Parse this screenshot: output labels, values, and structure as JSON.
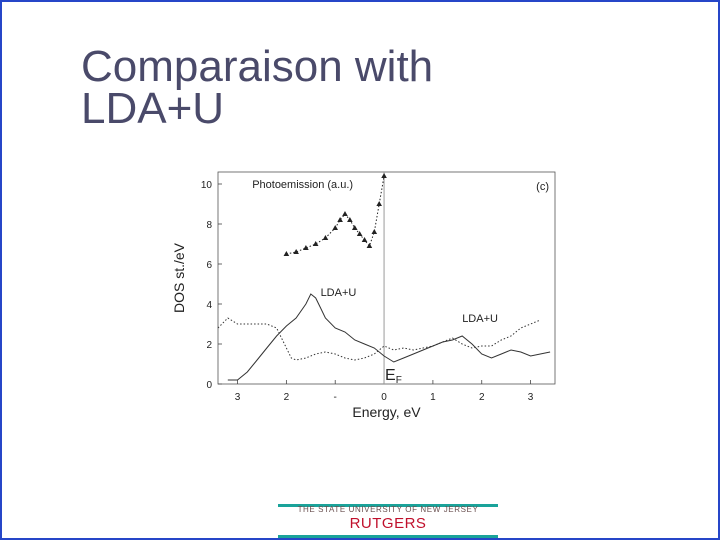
{
  "slide": {
    "title_lines": [
      "Comparaison with",
      "LDA+U"
    ],
    "footer": {
      "university": "THE STATE UNIVERSITY OF NEW JERSEY",
      "brand": "RUTGERS",
      "accent_color": "#1aa39a",
      "brand_color": "#c0102c"
    }
  },
  "chart_data": {
    "type": "line",
    "panel_label": "(c)",
    "xlabel": "Energy, eV",
    "ylabel": "DOS st./eV",
    "xlim": [
      -3.4,
      3.5
    ],
    "ylim": [
      0,
      10.6
    ],
    "xticks": [
      -3,
      -2,
      -1,
      0,
      1,
      2,
      3
    ],
    "xtick_labels": [
      "3",
      "2",
      "-",
      "0",
      "1",
      "2",
      "3"
    ],
    "yticks": [
      0,
      2,
      4,
      6,
      8,
      10
    ],
    "ytick_labels": [
      "0",
      "2",
      "4",
      "6",
      "8",
      "10"
    ],
    "fermi_level": {
      "x": 0,
      "label": "E",
      "subscript": "F"
    },
    "annotations": [
      {
        "text": "Photoemission (a.u.)",
        "x": -2.7,
        "y": 9.8
      },
      {
        "text": "LDA+U",
        "x": -1.3,
        "y": 4.4
      },
      {
        "text": "LDA+U",
        "x": 1.6,
        "y": 3.1
      }
    ],
    "series": [
      {
        "style": "dotted-markers",
        "color": "#222222",
        "x": [
          -2.0,
          -1.8,
          -1.6,
          -1.4,
          -1.2,
          -1.0,
          -0.9,
          -0.8,
          -0.7,
          -0.6,
          -0.5,
          -0.4,
          -0.3,
          -0.2,
          -0.1,
          0.0
        ],
        "y": [
          6.5,
          6.6,
          6.8,
          7.0,
          7.3,
          7.8,
          8.2,
          8.5,
          8.2,
          7.8,
          7.5,
          7.2,
          6.9,
          7.6,
          9.0,
          10.4
        ]
      },
      {
        "style": "solid",
        "color": "#333333",
        "x": [
          -3.2,
          -3.0,
          -2.8,
          -2.6,
          -2.4,
          -2.2,
          -2.0,
          -1.8,
          -1.6,
          -1.5,
          -1.4,
          -1.3,
          -1.2,
          -1.0,
          -0.8,
          -0.6,
          -0.4,
          -0.2,
          0.0,
          0.2,
          0.4,
          0.6,
          0.8,
          1.0,
          1.2,
          1.4,
          1.6,
          1.8,
          2.0,
          2.2,
          2.4,
          2.6,
          2.8,
          3.0,
          3.2,
          3.4
        ],
        "y": [
          0.2,
          0.2,
          0.6,
          1.2,
          1.8,
          2.4,
          2.9,
          3.3,
          4.0,
          4.5,
          4.3,
          3.8,
          3.3,
          2.8,
          2.6,
          2.2,
          2.0,
          1.8,
          1.4,
          1.1,
          1.3,
          1.5,
          1.7,
          1.9,
          2.1,
          2.2,
          2.4,
          2.0,
          1.5,
          1.3,
          1.5,
          1.7,
          1.6,
          1.4,
          1.5,
          1.6
        ]
      },
      {
        "style": "dotted",
        "color": "#333333",
        "x": [
          -3.4,
          -3.2,
          -3.0,
          -2.8,
          -2.6,
          -2.4,
          -2.2,
          -2.0,
          -1.9,
          -1.8,
          -1.6,
          -1.4,
          -1.2,
          -1.0,
          -0.8,
          -0.6,
          -0.4,
          -0.2,
          0.0,
          0.2,
          0.4,
          0.6,
          0.8,
          1.0,
          1.2,
          1.4,
          1.6,
          1.8,
          2.0,
          2.2,
          2.4,
          2.6,
          2.8,
          3.0,
          3.2
        ],
        "y": [
          2.8,
          3.3,
          3.0,
          3.0,
          3.0,
          3.0,
          2.8,
          1.8,
          1.3,
          1.2,
          1.3,
          1.5,
          1.6,
          1.5,
          1.3,
          1.2,
          1.3,
          1.5,
          1.9,
          1.7,
          1.8,
          1.7,
          1.8,
          1.9,
          2.1,
          2.3,
          2.0,
          1.8,
          1.9,
          1.9,
          2.2,
          2.4,
          2.8,
          3.0,
          3.2
        ]
      }
    ]
  }
}
